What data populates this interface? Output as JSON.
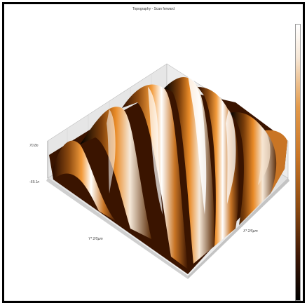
{
  "window": {
    "title": "Topography - Scan forward"
  },
  "plot3d": {
    "z_top_label": "70.8n",
    "z_bottom_label": "-59.1n",
    "y_axis_label": "Y* 2/5µm",
    "x_axis_label": "X* 2/5µm"
  },
  "colors": {
    "background": "#ffffff",
    "frame": "#000000",
    "bar_stops": [
      "#ffffff",
      "#c97525",
      "#8e4b10",
      "#2b0d00",
      "#000000"
    ]
  },
  "icons": {
    "colorbar": "colorbar"
  }
}
